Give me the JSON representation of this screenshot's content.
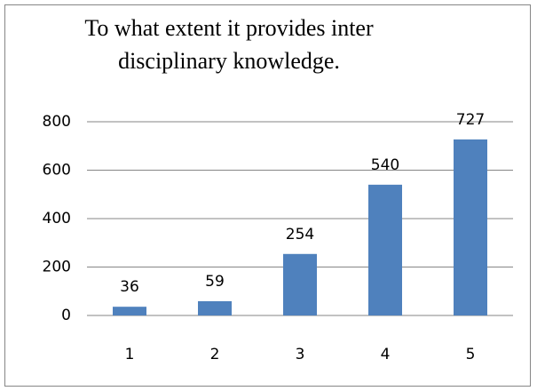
{
  "chart_data": {
    "type": "bar",
    "title": [
      "To what extent it provides inter",
      "disciplinary knowledge."
    ],
    "categories": [
      "1",
      "2",
      "3",
      "4",
      "5"
    ],
    "values": [
      36,
      59,
      254,
      540,
      727
    ],
    "color": "#4f81bd",
    "ylim": [
      0,
      800
    ],
    "yticks": [
      0,
      200,
      400,
      600,
      800
    ],
    "grid": true
  }
}
